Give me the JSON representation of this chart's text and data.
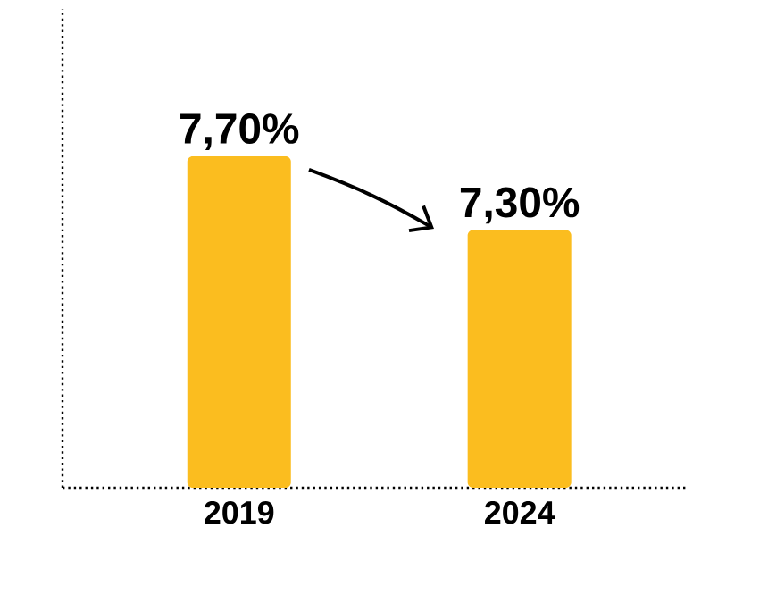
{
  "chart_data": {
    "type": "bar",
    "categories": [
      "2019",
      "2024"
    ],
    "values": [
      7.7,
      7.3
    ],
    "color": "#fbbd1f",
    "ylim": [
      5.9,
      8.5
    ],
    "value_labels": [
      "7,70%",
      "7,30%"
    ],
    "tick_labels": "x"
  }
}
